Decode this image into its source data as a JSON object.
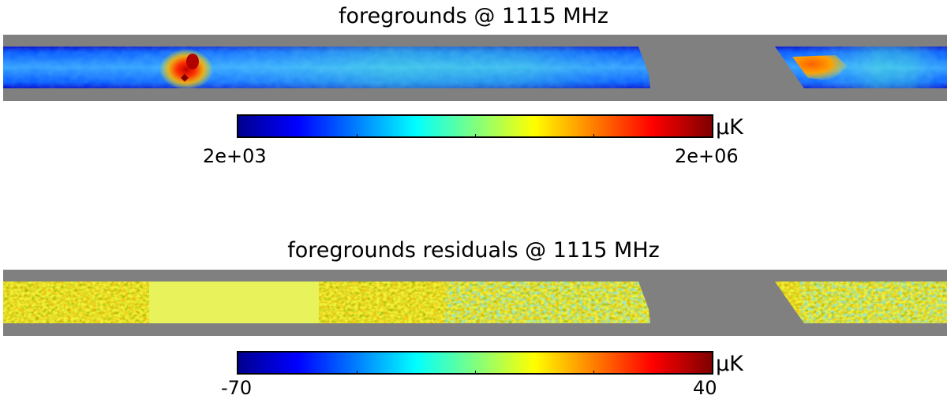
{
  "panels": [
    {
      "title": "foregrounds @ 1115 MHz",
      "colorbar": {
        "min_label": "2e+03",
        "max_label": "2e+06",
        "unit": "μK"
      }
    },
    {
      "title": "foregrounds residuals @ 1115 MHz",
      "colorbar": {
        "min_label": "-70",
        "max_label": "40",
        "unit": "μK"
      }
    }
  ],
  "colors": {
    "masked": "#808080",
    "colormap": "jet"
  }
}
